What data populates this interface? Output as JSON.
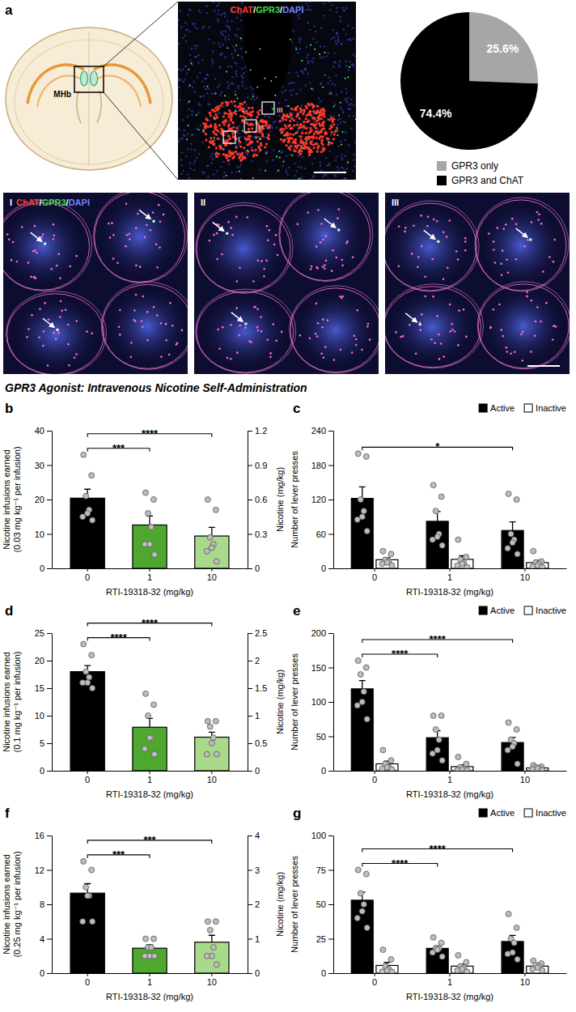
{
  "figure": {
    "panel": "a",
    "region_label": "MHb",
    "stain_label": [
      {
        "text": "ChAT",
        "color": "#ff3b2f"
      },
      {
        "text": "/",
        "color": "#ffffff"
      },
      {
        "text": "GPR3",
        "color": "#3ddc4a"
      },
      {
        "text": "/",
        "color": "#ffffff"
      },
      {
        "text": "DAPI",
        "color": "#6f86ff"
      }
    ],
    "insets": [
      "I",
      "II",
      "III"
    ],
    "section_title": "GPR3 Agonist: Intravenous Nicotine Self-Administration"
  },
  "chart_data": [
    {
      "type": "pie",
      "categories": [
        "GPR3 only",
        "GPR3 and ChAT"
      ],
      "values": [
        25.6,
        74.4
      ],
      "value_labels": [
        "25.6%",
        "74.4%"
      ],
      "colors": [
        "#a6a6a6",
        "#000000"
      ],
      "data_labels": true,
      "legend": "bottom"
    },
    {
      "type": "bar",
      "panel": "b",
      "categories": [
        "0",
        "1",
        "10"
      ],
      "values": [
        20.4,
        12.6,
        9.4
      ],
      "errors": [
        2.6,
        2.6,
        2.5
      ],
      "points": [
        [
          33,
          27,
          21,
          17,
          16,
          15,
          14
        ],
        [
          22,
          20,
          16,
          12,
          7,
          7,
          4
        ],
        [
          20,
          17,
          9,
          7,
          6,
          5,
          2
        ]
      ],
      "colors": [
        "#000000",
        "#4ea72e",
        "#a9d98b"
      ],
      "xlabel": "RTI-19318-32 (mg/kg)",
      "ylabel": "Nicotine infusions earned (0.03 mg kg⁻¹ per infusion)",
      "ylim": [
        0,
        40
      ],
      "yticks": [
        0,
        10,
        20,
        30,
        40
      ],
      "y2label": "Nicotine (mg/kg)",
      "y2lim": [
        0,
        1.2
      ],
      "y2ticks": [
        0,
        0.3,
        0.6,
        0.9,
        1.2
      ],
      "comparisons": [
        {
          "pair": [
            0,
            1
          ],
          "label": "***"
        },
        {
          "pair": [
            0,
            2
          ],
          "label": "****"
        }
      ]
    },
    {
      "type": "bar",
      "panel": "c",
      "categories": [
        "0",
        "1",
        "10"
      ],
      "xlabel": "RTI-19318-32 (mg/kg)",
      "ylabel": "Number of lever presses",
      "ylim": [
        0,
        240
      ],
      "yticks": [
        0,
        60,
        120,
        180,
        240
      ],
      "legend": "top-right",
      "series": [
        {
          "name": "Active",
          "color": "#000000",
          "values": [
            122,
            82,
            66
          ],
          "errors": [
            20,
            17,
            15
          ],
          "points": [
            [
              200,
              195,
              120,
              100,
              90,
              85,
              65
            ],
            [
              145,
              125,
              100,
              60,
              55,
              50,
              40
            ],
            [
              130,
              120,
              60,
              50,
              45,
              35,
              25
            ]
          ]
        },
        {
          "name": "Inactive",
          "color": "#ffffff",
          "values": [
            15,
            15.7,
            10
          ],
          "errors": [
            3.4,
            6.2,
            3.8
          ],
          "points": [
            [
              30,
              25,
              15,
              12,
              10,
              8,
              5
            ],
            [
              50,
              20,
              15,
              10,
              8,
              5,
              2
            ],
            [
              30,
              12,
              10,
              8,
              5,
              3,
              2
            ]
          ]
        }
      ],
      "comparisons": [
        {
          "pair": [
            0,
            2
          ],
          "label": "*"
        }
      ]
    },
    {
      "type": "bar",
      "panel": "d",
      "categories": [
        "0",
        "1",
        "10"
      ],
      "values": [
        18,
        7.9,
        6.1
      ],
      "errors": [
        1.1,
        1.6,
        0.9
      ],
      "points": [
        [
          23,
          21,
          18,
          17,
          16,
          16,
          15
        ],
        [
          14,
          12,
          10,
          6,
          6,
          4,
          3
        ],
        [
          9,
          9,
          8,
          6,
          5,
          3,
          3
        ]
      ],
      "colors": [
        "#000000",
        "#4ea72e",
        "#a9d98b"
      ],
      "xlabel": "RTI-19318-32 (mg/kg)",
      "ylabel": "Nicotine infusions earned (0.1 mg kg⁻¹ per infusion)",
      "ylim": [
        0,
        25
      ],
      "yticks": [
        0,
        5,
        10,
        15,
        20,
        25
      ],
      "y2label": "Nicotine (mg/kg)",
      "y2lim": [
        0,
        2.5
      ],
      "y2ticks": [
        0,
        0.5,
        1,
        1.5,
        2,
        2.5
      ],
      "comparisons": [
        {
          "pair": [
            0,
            1
          ],
          "label": "****"
        },
        {
          "pair": [
            0,
            2
          ],
          "label": "****"
        }
      ]
    },
    {
      "type": "bar",
      "panel": "e",
      "categories": [
        "0",
        "1",
        "10"
      ],
      "xlabel": "RTI-19318-32 (mg/kg)",
      "ylabel": "Number of lever presses",
      "ylim": [
        0,
        200
      ],
      "yticks": [
        0,
        50,
        100,
        150,
        200
      ],
      "legend": "top-right",
      "series": [
        {
          "name": "Active",
          "color": "#000000",
          "values": [
            119,
            48,
            41
          ],
          "errors": [
            12,
            10,
            7.5
          ],
          "points": [
            [
              160,
              150,
              140,
              115,
              100,
              95,
              75
            ],
            [
              80,
              80,
              60,
              45,
              30,
              25,
              15
            ],
            [
              70,
              60,
              45,
              40,
              35,
              30,
              10
            ]
          ]
        },
        {
          "name": "Inactive",
          "color": "#ffffff",
          "values": [
            10,
            6,
            4.1
          ],
          "errors": [
            3.8,
            2.6,
            0.9
          ],
          "points": [
            [
              30,
              15,
              10,
              5,
              5,
              3,
              2
            ],
            [
              20,
              10,
              5,
              3,
              2,
              1,
              1
            ],
            [
              8,
              6,
              5,
              4,
              3,
              2,
              1
            ]
          ]
        }
      ],
      "comparisons": [
        {
          "pair": [
            0,
            1
          ],
          "label": "****"
        },
        {
          "pair": [
            0,
            2
          ],
          "label": "****"
        }
      ]
    },
    {
      "type": "bar",
      "panel": "f",
      "categories": [
        "0",
        "1",
        "10"
      ],
      "values": [
        9.3,
        2.9,
        3.6
      ],
      "errors": [
        1.1,
        0.4,
        0.8
      ],
      "points": [
        [
          13,
          12,
          10,
          9,
          9,
          6,
          6
        ],
        [
          4,
          4,
          3,
          3,
          2,
          2,
          2
        ],
        [
          6,
          6,
          5,
          3,
          2,
          2,
          1
        ]
      ],
      "colors": [
        "#000000",
        "#4ea72e",
        "#a9d98b"
      ],
      "xlabel": "RTI-19318-32 (mg/kg)",
      "ylabel": "Nicotine infusions earned (0.25 mg kg⁻¹ per infusion)",
      "ylim": [
        0,
        16
      ],
      "yticks": [
        0,
        4,
        8,
        12,
        16
      ],
      "y2label": "Nicotine (mg/kg)",
      "y2lim": [
        0,
        4
      ],
      "y2ticks": [
        0,
        1,
        2,
        3,
        4
      ],
      "comparisons": [
        {
          "pair": [
            0,
            1
          ],
          "label": "***"
        },
        {
          "pair": [
            0,
            2
          ],
          "label": "***"
        }
      ]
    },
    {
      "type": "bar",
      "panel": "g",
      "categories": [
        "0",
        "1",
        "10"
      ],
      "xlabel": "RTI-19318-32 (mg/kg)",
      "ylabel": "Number of lever presses",
      "ylim": [
        0,
        100
      ],
      "yticks": [
        0,
        25,
        50,
        75,
        100
      ],
      "legend": "top-right",
      "series": [
        {
          "name": "Active",
          "color": "#000000",
          "values": [
            53,
            18,
            23
          ],
          "errors": [
            5.7,
            1.7,
            4.4
          ],
          "points": [
            [
              75,
              72,
              58,
              50,
              45,
              40,
              33
            ],
            [
              26,
              22,
              18,
              18,
              17,
              15,
              12
            ],
            [
              43,
              33,
              25,
              22,
              15,
              14,
              10
            ]
          ]
        },
        {
          "name": "Inactive",
          "color": "#ffffff",
          "values": [
            5.6,
            5.1,
            5.1
          ],
          "errors": [
            2.2,
            1.6,
            1
          ],
          "points": [
            [
              17,
              10,
              5,
              3,
              2,
              1,
              1
            ],
            [
              13,
              8,
              5,
              4,
              3,
              2,
              1
            ],
            [
              9,
              7,
              6,
              5,
              4,
              3,
              2
            ]
          ]
        }
      ],
      "comparisons": [
        {
          "pair": [
            0,
            1
          ],
          "label": "****"
        },
        {
          "pair": [
            0,
            2
          ],
          "label": "****"
        }
      ]
    }
  ]
}
